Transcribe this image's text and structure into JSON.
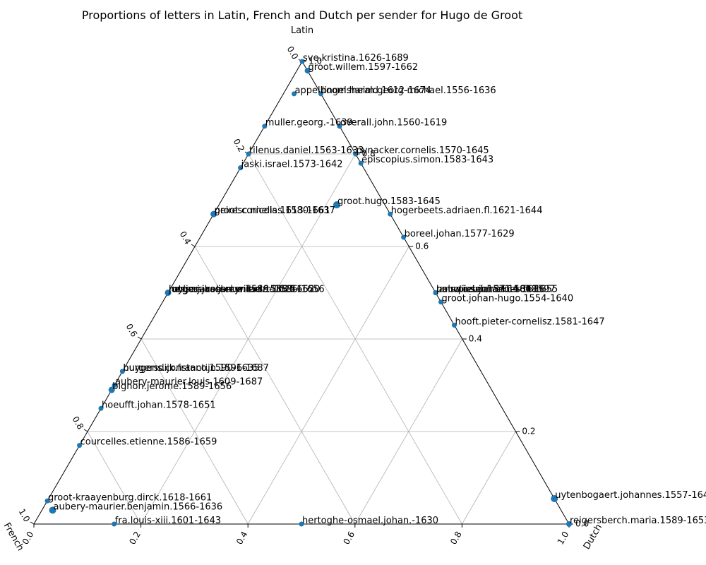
{
  "chart_data": {
    "type": "scatter",
    "subtype": "ternary",
    "title": "Proportions of letters in Latin, French and Dutch per sender for Hugo de Groot",
    "axes": {
      "top": "Latin",
      "left": "French",
      "right": "Dutch"
    },
    "ticks": {
      "left_edge": [
        "0.0",
        "0.2",
        "0.4",
        "0.6",
        "0.8",
        "1.0"
      ],
      "bottom_edge": [
        "0.0",
        "0.2",
        "0.4",
        "0.6",
        "0.8",
        "1.0"
      ],
      "right_edge": [
        "0.0",
        "0.2",
        "0.4",
        "0.6",
        "0.8",
        "1.0"
      ]
    },
    "grid": true,
    "point_color": "#1f77b4",
    "points": [
      {
        "label": "sve.kristina.1626-1689",
        "latin": 1.0,
        "french": 0.0,
        "dutch": 0.0,
        "size": 3.5
      },
      {
        "label": "groot.willem.1597-1662",
        "latin": 0.98,
        "french": 0.0,
        "dutch": 0.02,
        "size": 4
      },
      {
        "label": "appelboom.harald.1612-1674",
        "latin": 0.93,
        "french": 0.05,
        "dutch": 0.02,
        "size": 3.5
      },
      {
        "label": "lingelsheim.georg-michael.1556-1636",
        "latin": 0.93,
        "french": 0.0,
        "dutch": 0.07,
        "size": 3.5
      },
      {
        "label": "muller.georg.-1639",
        "latin": 0.86,
        "french": 0.14,
        "dutch": 0.0,
        "size": 3.5
      },
      {
        "label": "overall.john.1560-1619",
        "latin": 0.86,
        "french": 0.0,
        "dutch": 0.14,
        "size": 3.5
      },
      {
        "label": "tilenus.daniel.1563-1633",
        "latin": 0.8,
        "french": 0.2,
        "dutch": 0.0,
        "size": 3.5
      },
      {
        "label": "pynacker.cornelis.1570-1645",
        "latin": 0.8,
        "french": 0.0,
        "dutch": 0.2,
        "size": 3.5
      },
      {
        "label": "jaski.israel.1573-1642",
        "latin": 0.77,
        "french": 0.23,
        "dutch": 0.0,
        "size": 3.5
      },
      {
        "label": "episcopius.simon.1583-1643",
        "latin": 0.78,
        "french": 0.0,
        "dutch": 0.22,
        "size": 3.5
      },
      {
        "label": "groot.hugo.1583-1645",
        "latin": 0.69,
        "french": 0.09,
        "dutch": 0.22,
        "size": 5
      },
      {
        "label": "groot.cornelis.1613-1661",
        "latin": 0.67,
        "french": 0.33,
        "dutch": 0.0,
        "size": 3.5
      },
      {
        "label": "peiresc.nicolas.1580-1637",
        "latin": 0.67,
        "french": 0.33,
        "dutch": 0.0,
        "size": 4.5
      },
      {
        "label": "hogerbeets.adriaen.fl.1621-1644",
        "latin": 0.67,
        "french": 0.0,
        "dutch": 0.33,
        "size": 3.5
      },
      {
        "label": "boreel.johan.1577-1629",
        "latin": 0.62,
        "french": 0.0,
        "dutch": 0.38,
        "size": 3.5
      },
      {
        "label": "mylius.jacob-conrad.1585-1652",
        "latin": 0.5,
        "french": 0.5,
        "dutch": 0.0,
        "size": 3.5
      },
      {
        "label": "jonge.jacob-reyniersz.1583-1650",
        "latin": 0.5,
        "french": 0.5,
        "dutch": 0.0,
        "size": 3.5
      },
      {
        "label": "rutgersius.janus.1589-1625",
        "latin": 0.5,
        "french": 0.5,
        "dutch": 0.0,
        "size": 3.5
      },
      {
        "label": "hessen-kassel.wilhelm.1586-1656",
        "latin": 0.5,
        "french": 0.5,
        "dutch": 0.0,
        "size": 4.5
      },
      {
        "label": "lamotius.johannes.fl.1597",
        "latin": 0.5,
        "french": 0.0,
        "dutch": 0.5,
        "size": 3.5
      },
      {
        "label": "heinsius.daniel.1580-1655",
        "latin": 0.5,
        "french": 0.0,
        "dutch": 0.5,
        "size": 3.5
      },
      {
        "label": "pauw.reinier.1564-1636",
        "latin": 0.5,
        "french": 0.0,
        "dutch": 0.5,
        "size": 3.5
      },
      {
        "label": "pols.pieter.1571-1648",
        "latin": 0.5,
        "french": 0.0,
        "dutch": 0.5,
        "size": 3.5
      },
      {
        "label": "groot.johan-hugo.1554-1640",
        "latin": 0.48,
        "french": 0.0,
        "dutch": 0.52,
        "size": 3.5
      },
      {
        "label": "hooft.pieter-cornelisz.1581-1647",
        "latin": 0.43,
        "french": 0.0,
        "dutch": 0.57,
        "size": 3.5
      },
      {
        "label": "burgersdijk.franco.1590-1635",
        "latin": 0.33,
        "french": 0.67,
        "dutch": 0.0,
        "size": 3.5
      },
      {
        "label": "huygens.constantijn.1596-1687",
        "latin": 0.33,
        "french": 0.67,
        "dutch": 0.0,
        "size": 3.5
      },
      {
        "label": "aubery-maurier.louis.1609-1687",
        "latin": 0.3,
        "french": 0.7,
        "dutch": 0.0,
        "size": 3.5
      },
      {
        "label": "bignon.jerome.1589-1656",
        "latin": 0.29,
        "french": 0.71,
        "dutch": 0.0,
        "size": 4.5
      },
      {
        "label": "hoeufft.johan.1578-1651",
        "latin": 0.25,
        "french": 0.75,
        "dutch": 0.0,
        "size": 3.5
      },
      {
        "label": "courcelles.etienne.1586-1659",
        "latin": 0.17,
        "french": 0.83,
        "dutch": 0.0,
        "size": 3.5
      },
      {
        "label": "groot-kraayenburg.dirck.1618-1661",
        "latin": 0.05,
        "french": 0.95,
        "dutch": 0.0,
        "size": 3.5
      },
      {
        "label": "aubery-maurier.benjamin.1566-1636",
        "latin": 0.03,
        "french": 0.95,
        "dutch": 0.02,
        "size": 5
      },
      {
        "label": "fra.louis-xiii.1601-1643",
        "latin": 0.0,
        "french": 0.85,
        "dutch": 0.15,
        "size": 3.5
      },
      {
        "label": "hertoghe-osmael.johan.-1630",
        "latin": 0.0,
        "french": 0.5,
        "dutch": 0.5,
        "size": 3.5
      },
      {
        "label": "uytenbogaert.johannes.1557-1644",
        "latin": 0.055,
        "french": 0.0,
        "dutch": 0.945,
        "size": 5
      },
      {
        "label": "reigersberch.maria.1589-1653",
        "latin": 0.0,
        "french": 0.0,
        "dutch": 1.0,
        "size": 4
      }
    ]
  }
}
